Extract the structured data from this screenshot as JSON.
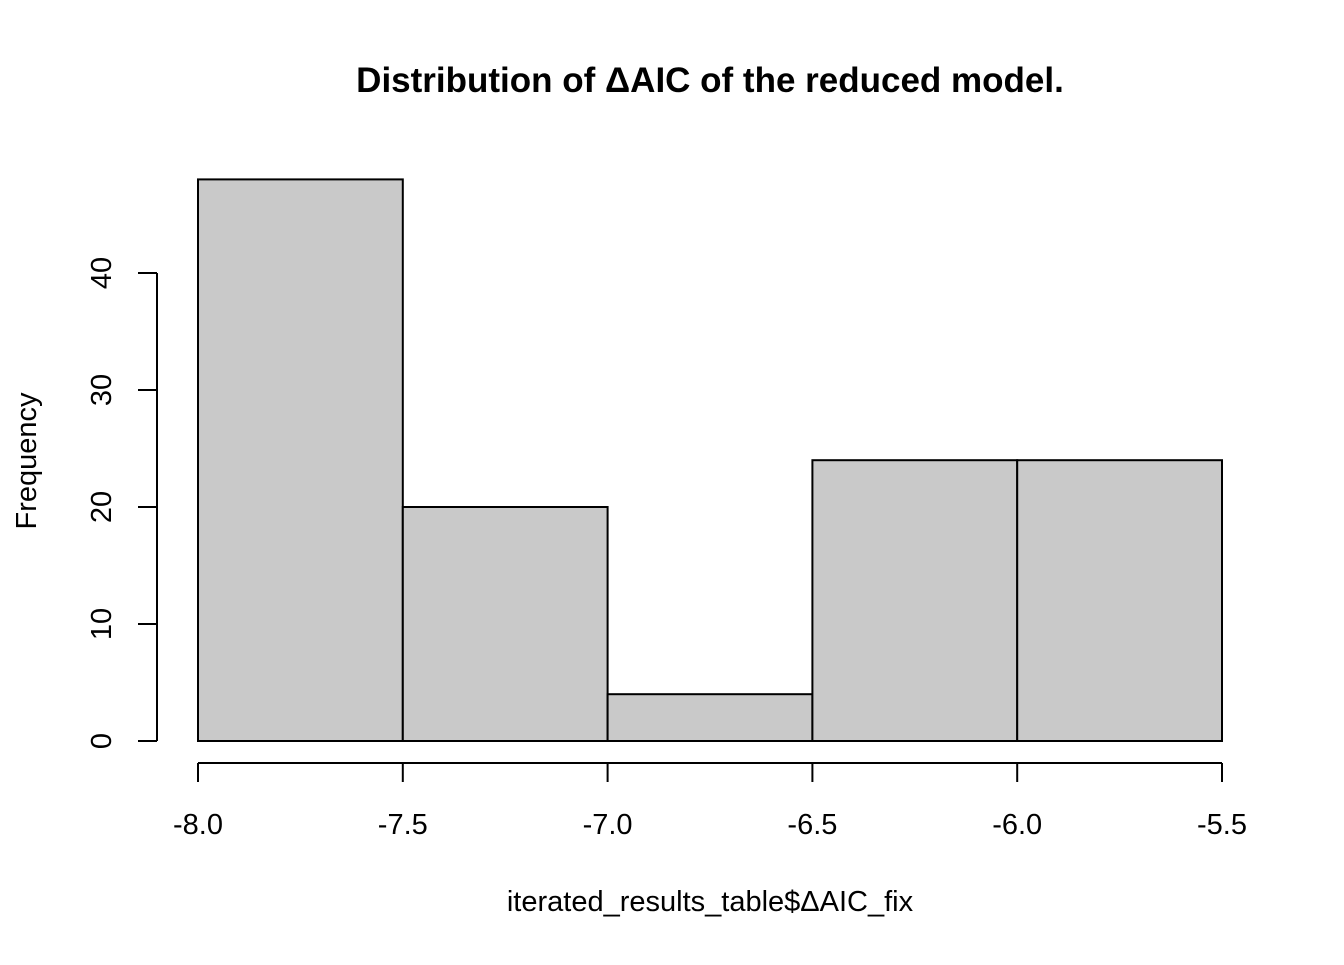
{
  "chart_data": {
    "type": "bar",
    "subtype": "histogram",
    "title": "Distribution of ΔAIC of the reduced model.",
    "xlabel": "iterated_results_table$ΔAIC_fix",
    "ylabel": "Frequency",
    "bins": [
      {
        "start": -8.0,
        "end": -7.5,
        "count": 48
      },
      {
        "start": -7.5,
        "end": -7.0,
        "count": 20
      },
      {
        "start": -7.0,
        "end": -6.5,
        "count": 4
      },
      {
        "start": -6.5,
        "end": -6.0,
        "count": 24
      },
      {
        "start": -6.0,
        "end": -5.5,
        "count": 24
      }
    ],
    "xlim": [
      -8.0,
      -5.5
    ],
    "ylim": [
      0,
      48
    ],
    "x_ticks": [
      -8.0,
      -7.5,
      -7.0,
      -6.5,
      -6.0,
      -5.5
    ],
    "x_tick_labels": [
      "-8.0",
      "-7.5",
      "-7.0",
      "-6.5",
      "-6.0",
      "-5.5"
    ],
    "y_ticks": [
      0,
      10,
      20,
      30,
      40
    ],
    "y_tick_labels": [
      "0",
      "10",
      "20",
      "30",
      "40"
    ],
    "grid": false,
    "legend": "none",
    "colors": {
      "bar_fill": "#c9c9c9",
      "bar_stroke": "#000000",
      "axis": "#000000",
      "background": "#ffffff"
    }
  }
}
